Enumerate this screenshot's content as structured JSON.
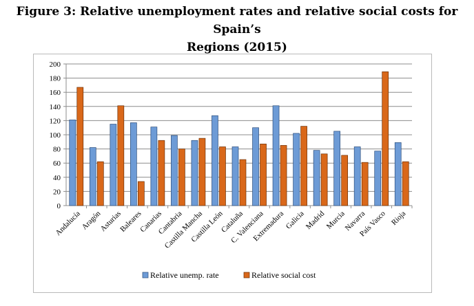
{
  "title_line1": "Figure 3: Relative unemployment rates and relative social costs for Spain’s",
  "title_line2": "Regions (2015)",
  "colors": {
    "series1_fill": "#6d9bd6",
    "series1_stroke": "#2c4d7a",
    "series2_fill": "#d9681a",
    "series2_stroke": "#6b2f06",
    "grid": "#8c8c8c"
  },
  "chart_data": {
    "type": "bar",
    "title": "Relative unemployment rates and relative social costs for Spain’s Regions (2015)",
    "categories": [
      "Andalucía",
      "Aragón",
      "Asturias",
      "Baleares",
      "Canarias",
      "Cantabria",
      "Castilla Mancha",
      "Castilla León",
      "Cataluña",
      "C. Valenciana",
      "Extremadura",
      "Galicia",
      "Madrid",
      "Murcia",
      "Navarra",
      "País Vasco",
      "Rioja"
    ],
    "series": [
      {
        "name": "Relative unemp. rate",
        "values": [
          121,
          82,
          115,
          117,
          111,
          99,
          92,
          127,
          83,
          110,
          141,
          102,
          78,
          105,
          83,
          77,
          89
        ]
      },
      {
        "name": "Relative social cost",
        "values": [
          167,
          62,
          141,
          34,
          92,
          80,
          95,
          83,
          65,
          87,
          85,
          112,
          73,
          71,
          61,
          189,
          62
        ]
      }
    ],
    "ylim": [
      0,
      200
    ],
    "yticks": [
      0,
      20,
      40,
      60,
      80,
      100,
      120,
      140,
      160,
      180,
      200
    ],
    "grid": true,
    "legend_position": "bottom"
  }
}
